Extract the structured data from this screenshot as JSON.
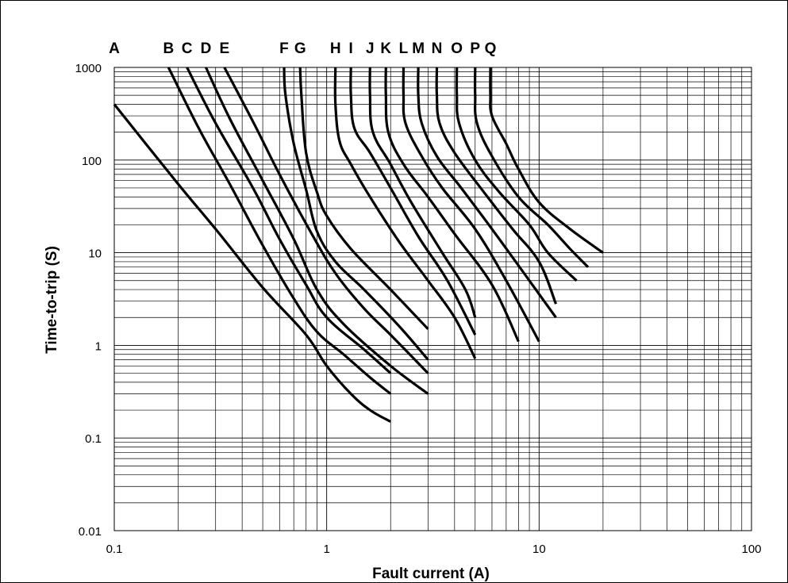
{
  "chart_data": {
    "type": "line",
    "title": "",
    "xlabel": "Fault current (A)",
    "ylabel": "Time-to-trip (S)",
    "x_scale": "log",
    "y_scale": "log",
    "xlim": [
      0.1,
      100
    ],
    "ylim": [
      0.01,
      1000
    ],
    "x_ticks": [
      "0.1",
      "1",
      "10",
      "100"
    ],
    "y_ticks": [
      "0.01",
      "0.1",
      "1",
      "10",
      "100",
      "1000"
    ],
    "grid": true,
    "line_color": "#000000",
    "series": [
      {
        "name": "A",
        "points": [
          [
            0.1,
            400
          ],
          [
            0.2,
            55
          ],
          [
            0.3,
            18
          ],
          [
            0.5,
            4.2
          ],
          [
            0.8,
            1.3
          ],
          [
            1.0,
            0.6
          ],
          [
            1.3,
            0.3
          ],
          [
            1.6,
            0.2
          ],
          [
            2.0,
            0.15
          ]
        ]
      },
      {
        "name": "B",
        "points": [
          [
            0.18,
            1000
          ],
          [
            0.25,
            220
          ],
          [
            0.35,
            55
          ],
          [
            0.5,
            12
          ],
          [
            0.7,
            3.2
          ],
          [
            0.9,
            1.4
          ],
          [
            1.2,
            0.8
          ],
          [
            1.6,
            0.45
          ],
          [
            2.0,
            0.3
          ]
        ]
      },
      {
        "name": "C",
        "points": [
          [
            0.22,
            1000
          ],
          [
            0.3,
            250
          ],
          [
            0.45,
            50
          ],
          [
            0.6,
            14
          ],
          [
            0.8,
            4.5
          ],
          [
            1.0,
            2.0
          ],
          [
            1.5,
            0.9
          ],
          [
            2.0,
            0.5
          ]
        ]
      },
      {
        "name": "D",
        "points": [
          [
            0.27,
            1000
          ],
          [
            0.35,
            280
          ],
          [
            0.5,
            60
          ],
          [
            0.7,
            14
          ],
          [
            0.9,
            4.0
          ],
          [
            1.2,
            1.7
          ],
          [
            2.0,
            0.6
          ],
          [
            3.0,
            0.3
          ]
        ]
      },
      {
        "name": "E",
        "points": [
          [
            0.33,
            1000
          ],
          [
            0.45,
            260
          ],
          [
            0.6,
            70
          ],
          [
            0.85,
            16
          ],
          [
            1.1,
            6.0
          ],
          [
            1.5,
            2.5
          ],
          [
            2.0,
            1.3
          ],
          [
            3.0,
            0.5
          ]
        ]
      },
      {
        "name": "F",
        "points": [
          [
            0.63,
            1000
          ],
          [
            0.64,
            500
          ],
          [
            0.7,
            150
          ],
          [
            0.8,
            48
          ],
          [
            0.9,
            17
          ],
          [
            1.1,
            8.0
          ],
          [
            1.5,
            4.0
          ],
          [
            2.2,
            1.6
          ],
          [
            3.0,
            0.7
          ]
        ]
      },
      {
        "name": "G",
        "points": [
          [
            0.75,
            1000
          ],
          [
            0.76,
            500
          ],
          [
            0.8,
            120
          ],
          [
            0.9,
            45
          ],
          [
            1.0,
            25
          ],
          [
            1.3,
            11
          ],
          [
            2.0,
            4.0
          ],
          [
            3.0,
            1.5
          ]
        ]
      },
      {
        "name": "H",
        "points": [
          [
            1.1,
            1000
          ],
          [
            1.1,
            400
          ],
          [
            1.15,
            160
          ],
          [
            1.3,
            90
          ],
          [
            1.6,
            40
          ],
          [
            2.2,
            13
          ],
          [
            3.0,
            5.0
          ],
          [
            4.0,
            2.0
          ],
          [
            5.0,
            0.72
          ]
        ]
      },
      {
        "name": "I",
        "points": [
          [
            1.3,
            1000
          ],
          [
            1.3,
            500
          ],
          [
            1.35,
            220
          ],
          [
            1.6,
            120
          ],
          [
            2.0,
            50
          ],
          [
            2.7,
            15
          ],
          [
            3.7,
            5.0
          ],
          [
            5.0,
            1.3
          ]
        ]
      },
      {
        "name": "J",
        "points": [
          [
            1.6,
            1000
          ],
          [
            1.6,
            500
          ],
          [
            1.65,
            200
          ],
          [
            2.0,
            90
          ],
          [
            2.5,
            35
          ],
          [
            3.5,
            10
          ],
          [
            4.5,
            4.0
          ],
          [
            5.0,
            2.0
          ]
        ]
      },
      {
        "name": "K",
        "points": [
          [
            1.9,
            1000
          ],
          [
            1.9,
            500
          ],
          [
            1.95,
            200
          ],
          [
            2.3,
            90
          ],
          [
            3.0,
            40
          ],
          [
            4.0,
            16
          ],
          [
            6.0,
            4.5
          ],
          [
            8.0,
            1.1
          ]
        ]
      },
      {
        "name": "L",
        "points": [
          [
            2.3,
            1000
          ],
          [
            2.3,
            500
          ],
          [
            2.35,
            250
          ],
          [
            2.8,
            110
          ],
          [
            3.5,
            50
          ],
          [
            5.0,
            18
          ],
          [
            7.0,
            5.0
          ],
          [
            10.0,
            1.1
          ]
        ]
      },
      {
        "name": "M",
        "points": [
          [
            2.7,
            1000
          ],
          [
            2.7,
            500
          ],
          [
            2.8,
            250
          ],
          [
            3.3,
            110
          ],
          [
            4.3,
            50
          ],
          [
            6.0,
            18
          ],
          [
            8.5,
            6.0
          ],
          [
            12.0,
            2.0
          ]
        ]
      },
      {
        "name": "N",
        "points": [
          [
            3.3,
            1000
          ],
          [
            3.3,
            500
          ],
          [
            3.4,
            250
          ],
          [
            4.0,
            120
          ],
          [
            5.5,
            45
          ],
          [
            7.5,
            18
          ],
          [
            10.0,
            8.0
          ],
          [
            12.0,
            2.8
          ]
        ]
      },
      {
        "name": "O",
        "points": [
          [
            4.1,
            1000
          ],
          [
            4.1,
            500
          ],
          [
            4.2,
            250
          ],
          [
            5.0,
            100
          ],
          [
            6.5,
            45
          ],
          [
            9.0,
            20
          ],
          [
            11.0,
            10
          ],
          [
            15.0,
            5.0
          ]
        ]
      },
      {
        "name": "P",
        "points": [
          [
            5.0,
            1000
          ],
          [
            5.0,
            500
          ],
          [
            5.1,
            250
          ],
          [
            6.0,
            110
          ],
          [
            8.0,
            40
          ],
          [
            11.0,
            20
          ],
          [
            14.0,
            11
          ],
          [
            17.0,
            7.0
          ]
        ]
      },
      {
        "name": "Q",
        "points": [
          [
            5.9,
            1000
          ],
          [
            5.9,
            500
          ],
          [
            6.0,
            300
          ],
          [
            7.0,
            150
          ],
          [
            8.0,
            80
          ],
          [
            10.0,
            35
          ],
          [
            14.0,
            18
          ],
          [
            20.0,
            10
          ]
        ]
      }
    ]
  }
}
